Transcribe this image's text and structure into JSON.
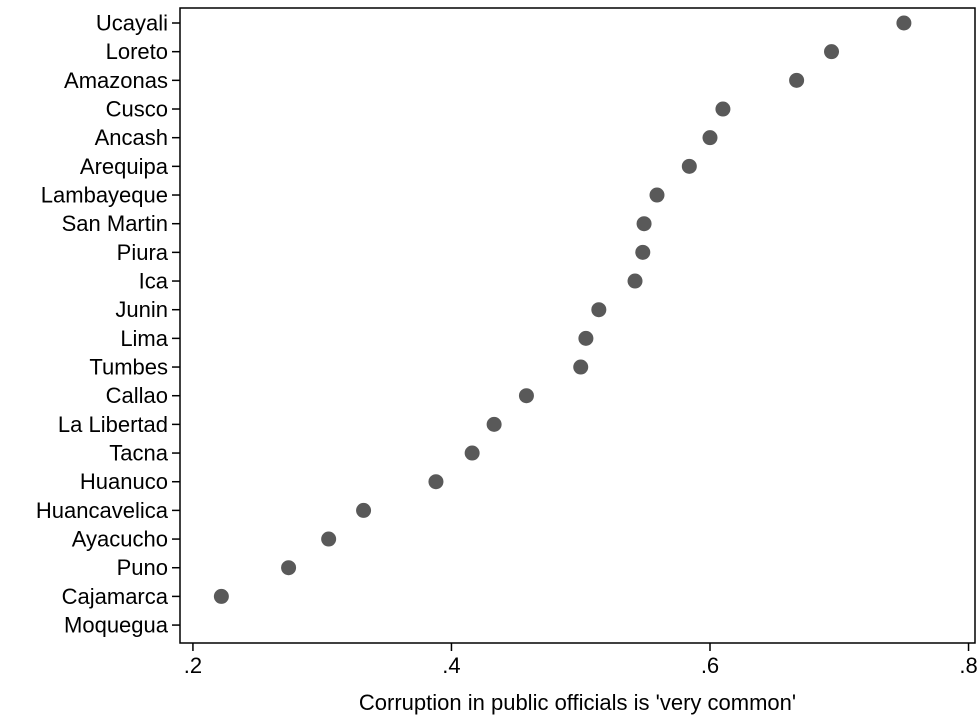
{
  "chart_data": {
    "type": "scatter",
    "orientation": "horizontal-dot",
    "title": "",
    "xlabel": "Corruption in public officials is 'very common'",
    "ylabel": "",
    "xlim": [
      0.19,
      0.805
    ],
    "xticks": [
      0.2,
      0.4,
      0.6,
      0.8
    ],
    "xtick_labels": [
      ".2",
      ".4",
      ".6",
      ".8"
    ],
    "grid": false,
    "legend": "none",
    "marker_color": "#595959",
    "categories": [
      "Ucayali",
      "Loreto",
      "Amazonas",
      "Cusco",
      "Ancash",
      "Arequipa",
      "Lambayeque",
      "San Martin",
      "Piura",
      "Ica",
      "Junin",
      "Lima",
      "Tumbes",
      "Callao",
      "La Libertad",
      "Tacna",
      "Huanuco",
      "Huancavelica",
      "Ayacucho",
      "Puno",
      "Cajamarca",
      "Moquegua"
    ],
    "values": [
      0.75,
      0.694,
      0.667,
      0.61,
      0.6,
      0.584,
      0.559,
      0.549,
      0.548,
      0.542,
      0.514,
      0.504,
      0.5,
      0.458,
      0.433,
      0.416,
      0.388,
      0.332,
      0.305,
      0.274,
      0.222,
      null
    ]
  }
}
